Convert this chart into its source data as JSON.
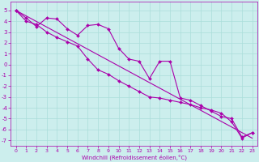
{
  "xlabel": "Windchill (Refroidissement éolien,°C)",
  "bg_color": "#cceeed",
  "grid_color": "#aaddda",
  "line_color": "#aa00aa",
  "xlim": [
    -0.5,
    23.5
  ],
  "ylim": [
    -7.5,
    5.8
  ],
  "yticks": [
    -7,
    -6,
    -5,
    -4,
    -3,
    -2,
    -1,
    0,
    1,
    2,
    3,
    4,
    5
  ],
  "xticks": [
    0,
    1,
    2,
    3,
    4,
    5,
    6,
    7,
    8,
    9,
    10,
    11,
    12,
    13,
    14,
    15,
    16,
    17,
    18,
    19,
    20,
    21,
    22,
    23
  ],
  "series1_x": [
    0,
    1,
    2,
    3,
    4,
    5,
    6,
    7,
    8,
    9,
    10,
    11,
    12,
    13,
    14,
    15,
    16,
    17,
    18,
    19,
    20,
    21,
    22,
    23
  ],
  "series1_y": [
    5.0,
    4.3,
    3.5,
    4.3,
    4.2,
    3.3,
    2.7,
    3.6,
    3.7,
    3.3,
    1.5,
    0.5,
    0.3,
    -1.3,
    0.3,
    0.3,
    -3.1,
    -3.3,
    -3.8,
    -4.3,
    -4.8,
    -5.0,
    -6.7,
    -6.3
  ],
  "series2_x": [
    0,
    1,
    2,
    3,
    4,
    5,
    6,
    7,
    8,
    9,
    10,
    11,
    12,
    13,
    14,
    15,
    16,
    17,
    18,
    19,
    20,
    21,
    22,
    23
  ],
  "series2_y": [
    5.0,
    4.0,
    3.7,
    3.0,
    2.5,
    2.1,
    1.7,
    0.5,
    -0.5,
    -0.9,
    -1.5,
    -2.0,
    -2.5,
    -3.0,
    -3.1,
    -3.3,
    -3.5,
    -3.7,
    -4.0,
    -4.2,
    -4.5,
    -5.3,
    -6.8,
    -6.3
  ],
  "series3_x": [
    0,
    23
  ],
  "series3_y": [
    5.0,
    -6.8
  ],
  "marker_size": 2.0,
  "line_width": 0.8,
  "tick_fontsize": 4.5,
  "xlabel_fontsize": 5.0
}
